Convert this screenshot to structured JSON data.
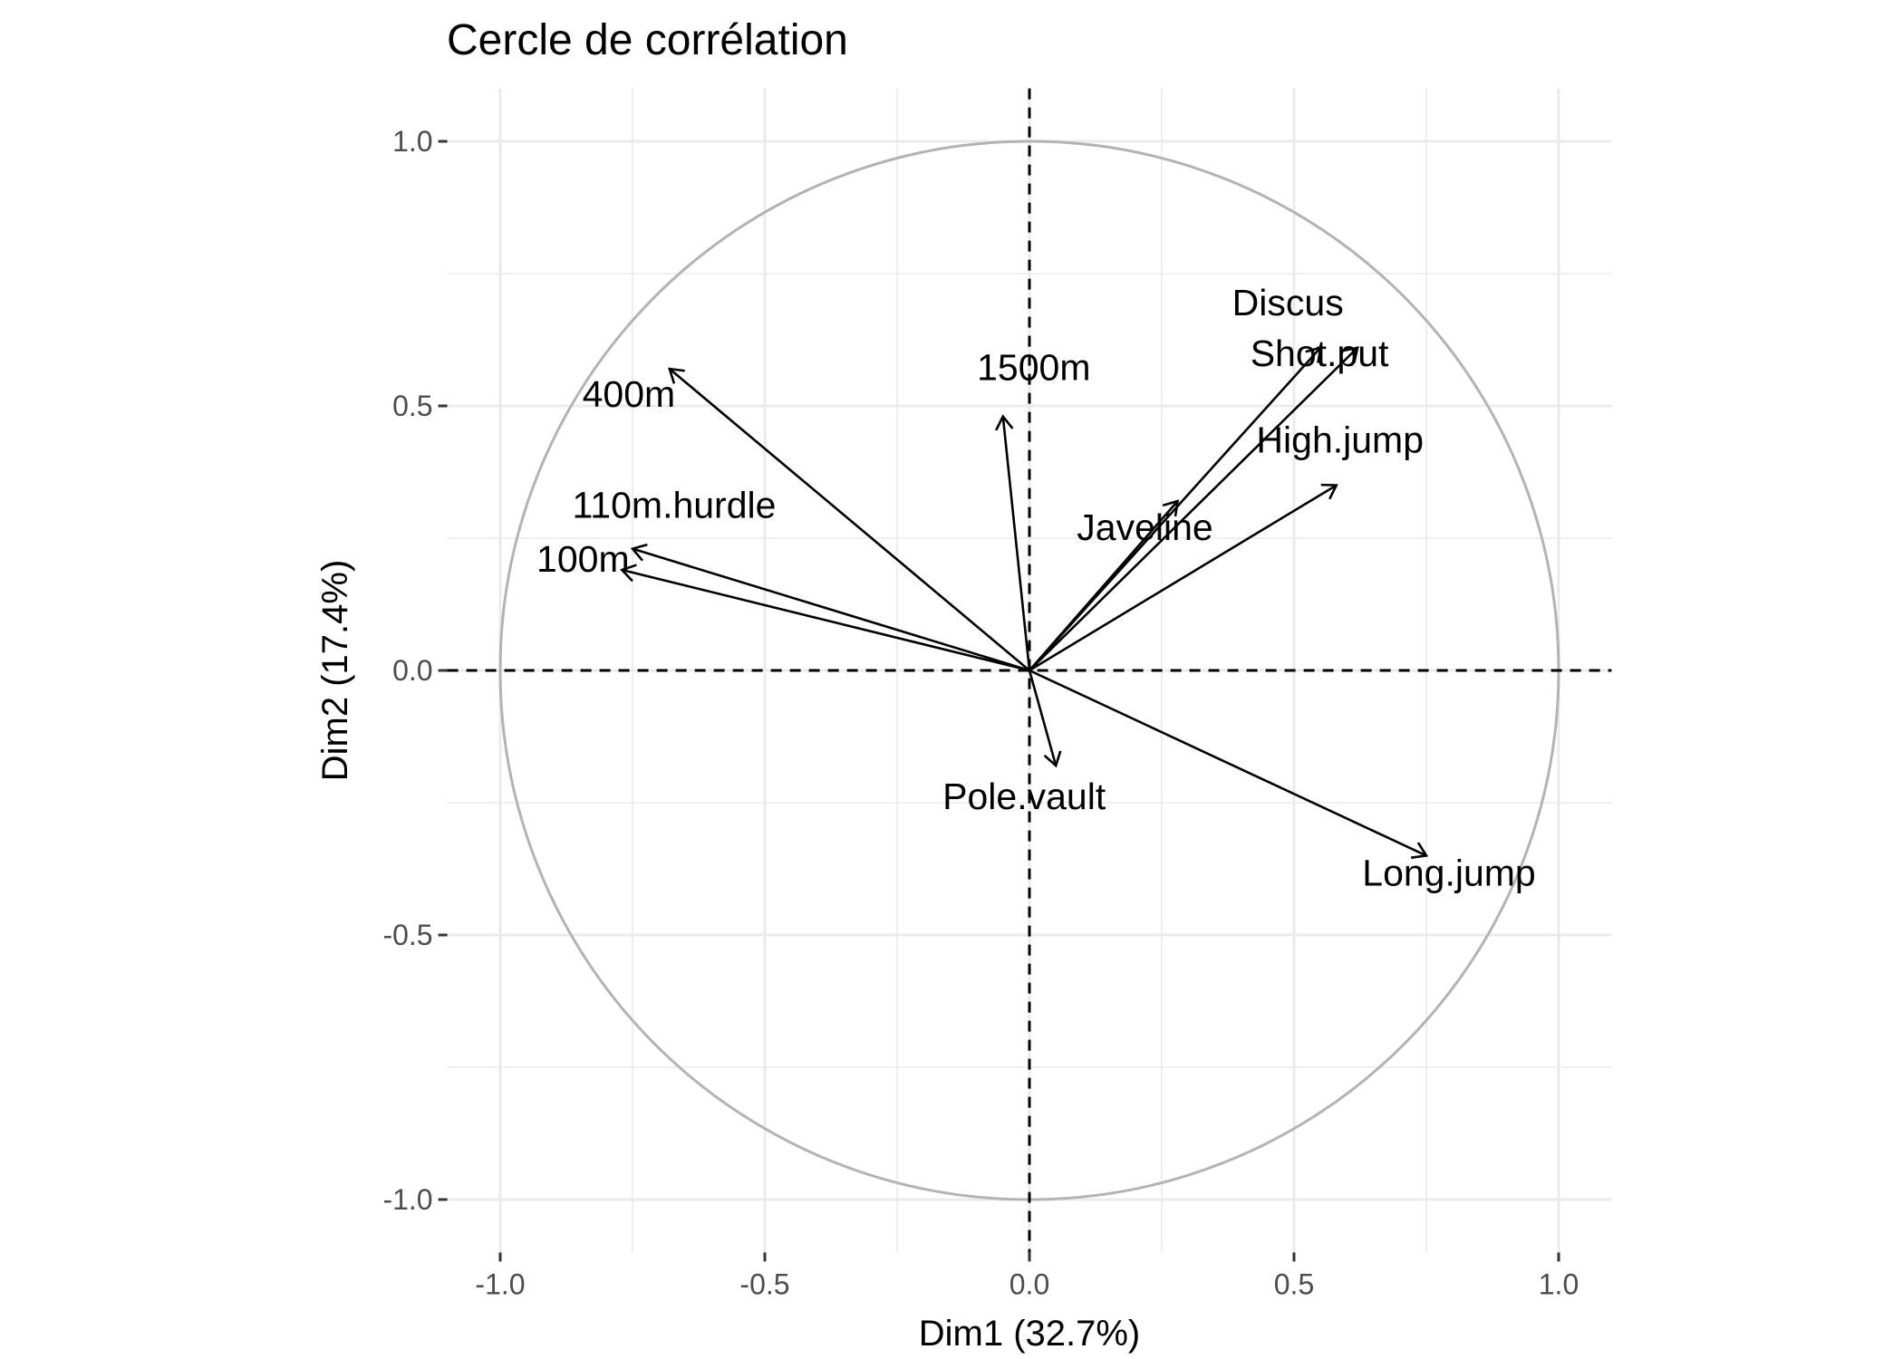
{
  "chart_data": {
    "type": "scatter",
    "subtype": "correlation-circle",
    "title": "Cercle de corrélation",
    "xlabel": "Dim1 (32.7%)",
    "ylabel": "Dim2 (17.4%)",
    "xlim": [
      -1.1,
      1.1
    ],
    "ylim": [
      -1.1,
      1.1
    ],
    "x_ticks": [
      -1.0,
      -0.5,
      0.0,
      0.5,
      1.0
    ],
    "y_ticks": [
      -1.0,
      -0.5,
      0.0,
      0.5,
      1.0
    ],
    "x_tick_labels": [
      "-1.0",
      "-0.5",
      "0.0",
      "0.5",
      "1.0"
    ],
    "y_tick_labels": [
      "-1.0",
      "-0.5",
      "0.0",
      "0.5",
      "1.0"
    ],
    "grid": true,
    "unit_circle": true,
    "reference_lines": {
      "x": 0,
      "y": 0,
      "style": "dashed"
    },
    "colors": {
      "arrow": "#000000",
      "circle": "#b3b3b3",
      "grid": "#ebebeb"
    },
    "variables": [
      {
        "name": "100m",
        "x": -0.77,
        "y": 0.19
      },
      {
        "name": "Long.jump",
        "x": 0.75,
        "y": -0.35
      },
      {
        "name": "Shot.put",
        "x": 0.62,
        "y": 0.61
      },
      {
        "name": "High.jump",
        "x": 0.58,
        "y": 0.35
      },
      {
        "name": "400m",
        "x": -0.68,
        "y": 0.57
      },
      {
        "name": "110m.hurdle",
        "x": -0.75,
        "y": 0.23
      },
      {
        "name": "Discus",
        "x": 0.55,
        "y": 0.61
      },
      {
        "name": "Pole.vault",
        "x": 0.05,
        "y": -0.18
      },
      {
        "name": "Javeline",
        "x": 0.28,
        "y": 0.32
      },
      {
        "name": "1500m",
        "x": -0.05,
        "y": 0.48
      }
    ]
  }
}
